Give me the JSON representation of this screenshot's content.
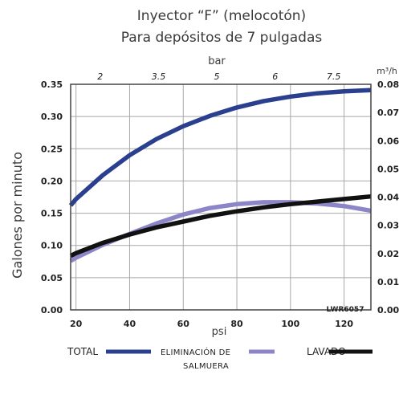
{
  "chart_data": {
    "type": "line",
    "title": "Inyector “F” (melocotón)",
    "subtitle": "Para depósitos de 7 pulgadas",
    "xlabel": "psi",
    "ylabel": "Galones por minuto",
    "x2label": "bar",
    "y2label": "m³/h",
    "xlim": [
      18,
      130
    ],
    "ylim": [
      0,
      0.35
    ],
    "y2lim": [
      0,
      0.08
    ],
    "xticks": [
      20,
      40,
      60,
      80,
      100,
      120
    ],
    "yticks": [
      0,
      0.05,
      0.1,
      0.15,
      0.2,
      0.25,
      0.3,
      0.35
    ],
    "xtick_labels": [
      "20",
      "40",
      "60",
      "80",
      "100",
      "120"
    ],
    "ytick_labels": [
      "0.00",
      "0.05",
      "0.10",
      "0.15",
      "0.20",
      "0.25",
      "0.30",
      "0.35"
    ],
    "x2ticks_psi": [
      29,
      50.8,
      72.5,
      94.3,
      116.1
    ],
    "x2tick_labels": [
      "2",
      "3.5",
      "5",
      "6",
      "7.5"
    ],
    "y2ticks": [
      0,
      0.01,
      0.02,
      0.03,
      0.04,
      0.05,
      0.06,
      0.07,
      0.08
    ],
    "y2tick_labels": [
      "0.00",
      "0.01",
      "0.02",
      "0.03",
      "0.04",
      "0.05",
      "0.06",
      "0.07",
      "0.08"
    ],
    "grid": true,
    "annotation": "LWR6057",
    "series": [
      {
        "name": "TOTAL",
        "color": "#2b3f8f",
        "x": [
          18,
          20,
          30,
          40,
          50,
          60,
          70,
          80,
          90,
          100,
          110,
          120,
          130
        ],
        "y": [
          0.162,
          0.172,
          0.209,
          0.24,
          0.265,
          0.285,
          0.301,
          0.314,
          0.324,
          0.331,
          0.336,
          0.339,
          0.341
        ]
      },
      {
        "name": "ELIMINACIÓN DE SALMUERA",
        "color": "#8c86c8",
        "x": [
          18,
          20,
          30,
          40,
          50,
          60,
          70,
          80,
          90,
          100,
          110,
          120,
          130
        ],
        "y": [
          0.076,
          0.081,
          0.101,
          0.118,
          0.134,
          0.148,
          0.158,
          0.164,
          0.167,
          0.167,
          0.165,
          0.161,
          0.154
        ]
      },
      {
        "name": "LAVADO",
        "color": "#111111",
        "x": [
          18,
          20,
          30,
          40,
          50,
          60,
          70,
          80,
          90,
          100,
          110,
          120,
          130
        ],
        "y": [
          0.084,
          0.088,
          0.104,
          0.117,
          0.128,
          0.137,
          0.146,
          0.153,
          0.159,
          0.164,
          0.168,
          0.172,
          0.176
        ]
      }
    ],
    "legend": [
      {
        "label_lines": [
          "TOTAL"
        ]
      },
      {
        "label_lines": [
          "ELIMINACIÓN DE",
          "SALMUERA"
        ]
      },
      {
        "label_lines": [
          "LAVADO"
        ]
      }
    ]
  }
}
